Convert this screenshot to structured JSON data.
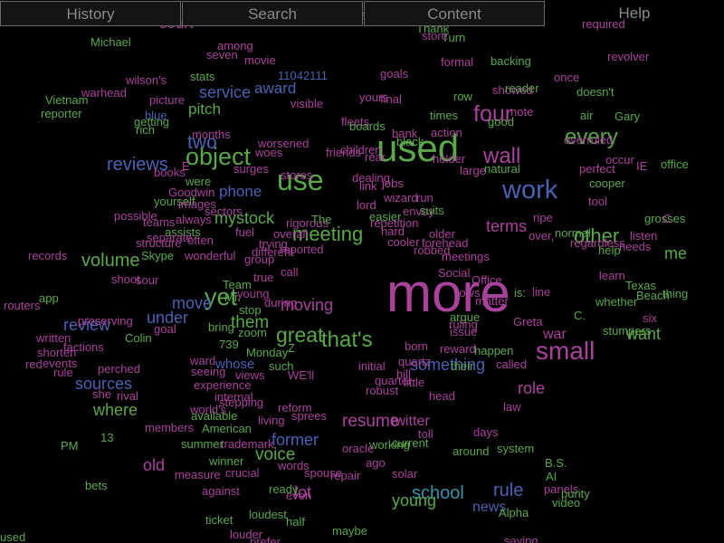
{
  "menu": {
    "history": "History",
    "search": "Search",
    "content": "Content",
    "help": "Help"
  },
  "colors": {
    "background": "#000000",
    "menu_text": "#8a8a8a",
    "menu_border": "#6a6a6a",
    "green": "#5aa84a",
    "magenta": "#a8429a",
    "blue": "#4a62b0",
    "teal": "#3a8fa8"
  },
  "word_cloud": {
    "featured_words": [
      {
        "text": "more",
        "color": "#a8429a"
      },
      {
        "text": "used",
        "color": "#5aa84a"
      },
      {
        "text": "use",
        "color": "#5aa84a"
      },
      {
        "text": "work",
        "color": "#4a62b0"
      },
      {
        "text": "small",
        "color": "#a8429a"
      },
      {
        "text": "yet",
        "color": "#5aa84a"
      },
      {
        "text": "object",
        "color": "#5aa84a"
      },
      {
        "text": "four",
        "color": "#a8429a"
      },
      {
        "text": "wall",
        "color": "#a8429a"
      },
      {
        "text": "every",
        "color": "#5aa84a"
      },
      {
        "text": "that's",
        "color": "#5aa84a"
      },
      {
        "text": "great",
        "color": "#5aa84a"
      },
      {
        "text": "meeting",
        "color": "#5aa84a"
      },
      {
        "text": "other",
        "color": "#5aa84a"
      },
      {
        "text": "two",
        "color": "#4a62b0"
      },
      {
        "text": "reviews",
        "color": "#4a62b0"
      },
      {
        "text": "school",
        "color": "#3a8fa8"
      },
      {
        "text": "volume",
        "color": "#5aa84a"
      },
      {
        "text": "resume",
        "color": "#a8429a"
      },
      {
        "text": "rule",
        "color": "#4a62b0"
      },
      {
        "text": "voice",
        "color": "#5aa84a"
      },
      {
        "text": "them",
        "color": "#5aa84a"
      },
      {
        "text": "service",
        "color": "#4a62b0"
      },
      {
        "text": "mystock",
        "color": "#5aa84a"
      },
      {
        "text": "something",
        "color": "#4a62b0"
      },
      {
        "text": "former",
        "color": "#4a62b0"
      },
      {
        "text": "role",
        "color": "#a8429a"
      },
      {
        "text": "terms",
        "color": "#a8429a"
      },
      {
        "text": "moving",
        "color": "#a8429a"
      },
      {
        "text": "review",
        "color": "#4a62b0"
      },
      {
        "text": "award",
        "color": "#4a62b0"
      },
      {
        "text": "phone",
        "color": "#4a62b0"
      },
      {
        "text": "pitch",
        "color": "#5aa84a"
      },
      {
        "text": "sources",
        "color": "#4a62b0"
      },
      {
        "text": "where",
        "color": "#5aa84a"
      },
      {
        "text": "under",
        "color": "#4a62b0"
      },
      {
        "text": "move",
        "color": "#4a62b0"
      },
      {
        "text": "old",
        "color": "#a8429a"
      },
      {
        "text": "young",
        "color": "#5aa84a"
      },
      {
        "text": "room",
        "color": "#a8429a"
      },
      {
        "text": "want",
        "color": "#5aa84a"
      },
      {
        "text": "me",
        "color": "#5aa84a"
      },
      {
        "text": "war",
        "color": "#a8429a"
      },
      {
        "text": "court",
        "color": "#a8429a"
      },
      {
        "text": "lot",
        "color": "#a8429a"
      },
      {
        "text": "twitter",
        "color": "#a8429a"
      },
      {
        "text": "news",
        "color": "#4a62b0"
      },
      {
        "text": "whose",
        "color": "#4a62b0"
      }
    ],
    "small_words": [
      {
        "text": "Michael",
        "color": "#5aa84a"
      },
      {
        "text": "reporter",
        "color": "#5aa84a"
      },
      {
        "text": "Vietnam",
        "color": "#5aa84a"
      },
      {
        "text": "warhead",
        "color": "#a8429a"
      },
      {
        "text": "wilson's",
        "color": "#a8429a"
      },
      {
        "text": "stats",
        "color": "#5aa84a"
      },
      {
        "text": "among",
        "color": "#a8429a"
      },
      {
        "text": "seven",
        "color": "#a8429a"
      },
      {
        "text": "movie",
        "color": "#a8429a"
      },
      {
        "text": "11042111",
        "color": "#4a62b0"
      },
      {
        "text": "visible",
        "color": "#a8429a"
      },
      {
        "text": "picture",
        "color": "#a8429a"
      },
      {
        "text": "blue",
        "color": "#4a62b0"
      },
      {
        "text": "getting",
        "color": "#5aa84a"
      },
      {
        "text": "rich",
        "color": "#5aa84a"
      },
      {
        "text": "months",
        "color": "#a8429a"
      },
      {
        "text": "worsened",
        "color": "#a8429a"
      },
      {
        "text": "woes",
        "color": "#a8429a"
      },
      {
        "text": "E",
        "color": "#a8429a"
      },
      {
        "text": "books",
        "color": "#a8429a"
      },
      {
        "text": "were",
        "color": "#5aa84a"
      },
      {
        "text": "surges",
        "color": "#a8429a"
      },
      {
        "text": "stores",
        "color": "#a8429a"
      },
      {
        "text": "Goodwin",
        "color": "#a8429a"
      },
      {
        "text": "yourself",
        "color": "#5aa84a"
      },
      {
        "text": "images",
        "color": "#a8429a"
      },
      {
        "text": "sectors",
        "color": "#a8429a"
      },
      {
        "text": "always",
        "color": "#a8429a"
      },
      {
        "text": "possible",
        "color": "#a8429a"
      },
      {
        "text": "teams",
        "color": "#a8429a"
      },
      {
        "text": "assists",
        "color": "#5aa84a"
      },
      {
        "text": "separate",
        "color": "#a8429a"
      },
      {
        "text": "structure",
        "color": "#a8429a"
      },
      {
        "text": "often",
        "color": "#a8429a"
      },
      {
        "text": "fuel",
        "color": "#a8429a"
      },
      {
        "text": "trying",
        "color": "#a8429a"
      },
      {
        "text": "different",
        "color": "#a8429a"
      },
      {
        "text": "rigorous",
        "color": "#a8429a"
      },
      {
        "text": "The",
        "color": "#5aa84a"
      },
      {
        "text": "overall",
        "color": "#a8429a"
      },
      {
        "text": "records",
        "color": "#a8429a"
      },
      {
        "text": "Skype",
        "color": "#5aa84a"
      },
      {
        "text": "wonderful",
        "color": "#a8429a"
      },
      {
        "text": "group",
        "color": "#a8429a"
      },
      {
        "text": "reported",
        "color": "#a8429a"
      },
      {
        "text": "sour",
        "color": "#a8429a"
      },
      {
        "text": "shoot",
        "color": "#a8429a"
      },
      {
        "text": "true",
        "color": "#a8429a"
      },
      {
        "text": "call",
        "color": "#a8429a"
      },
      {
        "text": "Team",
        "color": "#5aa84a"
      },
      {
        "text": "Mr.",
        "color": "#5aa84a"
      },
      {
        "text": "stop",
        "color": "#5aa84a"
      },
      {
        "text": "during",
        "color": "#a8429a"
      },
      {
        "text": "young",
        "color": "#a8429a"
      },
      {
        "text": "app",
        "color": "#5aa84a"
      },
      {
        "text": "routers",
        "color": "#a8429a"
      },
      {
        "text": "preserving",
        "color": "#a8429a"
      },
      {
        "text": "goal",
        "color": "#a8429a"
      },
      {
        "text": "bring",
        "color": "#5aa84a"
      },
      {
        "text": "zoom",
        "color": "#5aa84a"
      },
      {
        "text": "written",
        "color": "#a8429a"
      },
      {
        "text": "Colin",
        "color": "#5aa84a"
      },
      {
        "text": "factions",
        "color": "#a8429a"
      },
      {
        "text": "shorten",
        "color": "#a8429a"
      },
      {
        "text": "red",
        "color": "#a8429a"
      },
      {
        "text": "events",
        "color": "#a8429a"
      },
      {
        "text": "rule",
        "color": "#a8429a"
      },
      {
        "text": "perched",
        "color": "#a8429a"
      },
      {
        "text": "739",
        "color": "#5aa84a"
      },
      {
        "text": "Monday",
        "color": "#5aa84a"
      },
      {
        "text": "Z",
        "color": "#5aa84a"
      },
      {
        "text": "ward",
        "color": "#a8429a"
      },
      {
        "text": "seeing",
        "color": "#a8429a"
      },
      {
        "text": "views",
        "color": "#a8429a"
      },
      {
        "text": "such",
        "color": "#5aa84a"
      },
      {
        "text": "WE'll",
        "color": "#a8429a"
      },
      {
        "text": "rival",
        "color": "#a8429a"
      },
      {
        "text": "she",
        "color": "#a8429a"
      },
      {
        "text": "experience",
        "color": "#a8429a"
      },
      {
        "text": "internal",
        "color": "#a8429a"
      },
      {
        "text": "stepping",
        "color": "#a8429a"
      },
      {
        "text": "world's",
        "color": "#a8429a"
      },
      {
        "text": "available",
        "color": "#5aa84a"
      },
      {
        "text": "reform",
        "color": "#a8429a"
      },
      {
        "text": "sprees",
        "color": "#a8429a"
      },
      {
        "text": "living",
        "color": "#a8429a"
      },
      {
        "text": "members",
        "color": "#a8429a"
      },
      {
        "text": "American",
        "color": "#5aa84a"
      },
      {
        "text": "trademark",
        "color": "#a8429a"
      },
      {
        "text": "summer",
        "color": "#5aa84a"
      },
      {
        "text": "13",
        "color": "#5aa84a"
      },
      {
        "text": "PM",
        "color": "#5aa84a"
      },
      {
        "text": "winner",
        "color": "#5aa84a"
      },
      {
        "text": "words",
        "color": "#a8429a"
      },
      {
        "text": "crucial",
        "color": "#a8429a"
      },
      {
        "text": "measure",
        "color": "#a8429a"
      },
      {
        "text": "spouse",
        "color": "#a8429a"
      },
      {
        "text": "bets",
        "color": "#5aa84a"
      },
      {
        "text": "against",
        "color": "#a8429a"
      },
      {
        "text": "ready",
        "color": "#5aa84a"
      },
      {
        "text": "even",
        "color": "#a8429a"
      },
      {
        "text": "ticket",
        "color": "#5aa84a"
      },
      {
        "text": "loudest",
        "color": "#5aa84a"
      },
      {
        "text": "half",
        "color": "#5aa84a"
      },
      {
        "text": "louder",
        "color": "#a8429a"
      },
      {
        "text": "prefer",
        "color": "#a8429a"
      },
      {
        "text": "maybe",
        "color": "#5aa84a"
      },
      {
        "text": "used",
        "color": "#5aa84a"
      },
      {
        "text": "seconds",
        "color": "#5aa84a"
      },
      {
        "text": "never",
        "color": "#a8429a"
      },
      {
        "text": "Thank",
        "color": "#5aa84a"
      },
      {
        "text": "Turn",
        "color": "#5aa84a"
      },
      {
        "text": "store",
        "color": "#a8429a"
      },
      {
        "text": "formal",
        "color": "#a8429a"
      },
      {
        "text": "goals",
        "color": "#a8429a"
      },
      {
        "text": "yours",
        "color": "#a8429a"
      },
      {
        "text": "final",
        "color": "#a8429a"
      },
      {
        "text": "row",
        "color": "#5aa84a"
      },
      {
        "text": "showed",
        "color": "#a8429a"
      },
      {
        "text": "note",
        "color": "#a8429a"
      },
      {
        "text": "good",
        "color": "#5aa84a"
      },
      {
        "text": "times",
        "color": "#5aa84a"
      },
      {
        "text": "action",
        "color": "#a8429a"
      },
      {
        "text": "fleets",
        "color": "#a8429a"
      },
      {
        "text": "boards",
        "color": "#5aa84a"
      },
      {
        "text": "bank",
        "color": "#a8429a"
      },
      {
        "text": "black",
        "color": "#5aa84a"
      },
      {
        "text": "friends",
        "color": "#a8429a"
      },
      {
        "text": "children",
        "color": "#a8429a"
      },
      {
        "text": "rear",
        "color": "#a8429a"
      },
      {
        "text": "holder",
        "color": "#a8429a"
      },
      {
        "text": "large",
        "color": "#a8429a"
      },
      {
        "text": "natural",
        "color": "#5aa84a"
      },
      {
        "text": "dealing",
        "color": "#a8429a"
      },
      {
        "text": "link",
        "color": "#a8429a"
      },
      {
        "text": "jobs",
        "color": "#a8429a"
      },
      {
        "text": "run",
        "color": "#a8429a"
      },
      {
        "text": "wizard",
        "color": "#a8429a"
      },
      {
        "text": "envoy",
        "color": "#a8429a"
      },
      {
        "text": "suits",
        "color": "#5aa84a"
      },
      {
        "text": "lord",
        "color": "#a8429a"
      },
      {
        "text": "easier",
        "color": "#5aa84a"
      },
      {
        "text": "repetition",
        "color": "#a8429a"
      },
      {
        "text": "hard",
        "color": "#a8429a"
      },
      {
        "text": "older",
        "color": "#a8429a"
      },
      {
        "text": "forehead",
        "color": "#a8429a"
      },
      {
        "text": "cooler",
        "color": "#a8429a"
      },
      {
        "text": "robbed",
        "color": "#a8429a"
      },
      {
        "text": "meetings",
        "color": "#a8429a"
      },
      {
        "text": "Social",
        "color": "#a8429a"
      },
      {
        "text": "Office",
        "color": "#a8429a"
      },
      {
        "text": "rows",
        "color": "#a8429a"
      },
      {
        "text": "matter",
        "color": "#a8429a"
      },
      {
        "text": "argue",
        "color": "#5aa84a"
      },
      {
        "text": "ruling",
        "color": "#a8429a"
      },
      {
        "text": "issue",
        "color": "#a8429a"
      },
      {
        "text": "reward",
        "color": "#a8429a"
      },
      {
        "text": "happen",
        "color": "#5aa84a"
      },
      {
        "text": "their",
        "color": "#5aa84a"
      },
      {
        "text": "called",
        "color": "#a8429a"
      },
      {
        "text": "born",
        "color": "#a8429a"
      },
      {
        "text": "quartz",
        "color": "#a8429a"
      },
      {
        "text": "initial",
        "color": "#a8429a"
      },
      {
        "text": "hill",
        "color": "#a8429a"
      },
      {
        "text": "little",
        "color": "#a8429a"
      },
      {
        "text": "quarter",
        "color": "#a8429a"
      },
      {
        "text": "robust",
        "color": "#a8429a"
      },
      {
        "text": "head",
        "color": "#a8429a"
      },
      {
        "text": "law",
        "color": "#a8429a"
      },
      {
        "text": "days",
        "color": "#a8429a"
      },
      {
        "text": "system",
        "color": "#5aa84a"
      },
      {
        "text": "around",
        "color": "#5aa84a"
      },
      {
        "text": "toll",
        "color": "#a8429a"
      },
      {
        "text": "current",
        "color": "#5aa84a"
      },
      {
        "text": "working",
        "color": "#5aa84a"
      },
      {
        "text": "ago",
        "color": "#a8429a"
      },
      {
        "text": "oracle",
        "color": "#a8429a"
      },
      {
        "text": "repair",
        "color": "#a8429a"
      },
      {
        "text": "solar",
        "color": "#a8429a"
      },
      {
        "text": "B.S.",
        "color": "#5aa84a"
      },
      {
        "text": "AI",
        "color": "#5aa84a"
      },
      {
        "text": "panels",
        "color": "#a8429a"
      },
      {
        "text": "purity",
        "color": "#5aa84a"
      },
      {
        "text": "video",
        "color": "#5aa84a"
      },
      {
        "text": "Alpha",
        "color": "#5aa84a"
      },
      {
        "text": "saying",
        "color": "#a8429a"
      },
      {
        "text": "backing",
        "color": "#5aa84a"
      },
      {
        "text": "reader",
        "color": "#5aa84a"
      },
      {
        "text": "once",
        "color": "#a8429a"
      },
      {
        "text": "revolver",
        "color": "#a8429a"
      },
      {
        "text": "required",
        "color": "#a8429a"
      },
      {
        "text": "doesn't",
        "color": "#5aa84a"
      },
      {
        "text": "air",
        "color": "#5aa84a"
      },
      {
        "text": "Gary",
        "color": "#5aa84a"
      },
      {
        "text": "overruled",
        "color": "#a8429a"
      },
      {
        "text": "occur",
        "color": "#a8429a"
      },
      {
        "text": "perfect",
        "color": "#a8429a"
      },
      {
        "text": "IE",
        "color": "#a8429a"
      },
      {
        "text": "office",
        "color": "#5aa84a"
      },
      {
        "text": "cooper",
        "color": "#5aa84a"
      },
      {
        "text": "tool",
        "color": "#a8429a"
      },
      {
        "text": "ripe",
        "color": "#a8429a"
      },
      {
        "text": "grosses",
        "color": "#5aa84a"
      },
      {
        "text": "C",
        "color": "#a8429a"
      },
      {
        "text": "normal",
        "color": "#5aa84a"
      },
      {
        "text": "listen",
        "color": "#a8429a"
      },
      {
        "text": "regardless",
        "color": "#a8429a"
      },
      {
        "text": "needs",
        "color": "#a8429a"
      },
      {
        "text": "help",
        "color": "#5aa84a"
      },
      {
        "text": "over,",
        "color": "#a8429a"
      },
      {
        "text": "learn",
        "color": "#a8429a"
      },
      {
        "text": "Texas",
        "color": "#5aa84a"
      },
      {
        "text": "Beach",
        "color": "#5aa84a"
      },
      {
        "text": "thing",
        "color": "#5aa84a"
      },
      {
        "text": "whether",
        "color": "#5aa84a"
      },
      {
        "text": "is:",
        "color": "#5aa84a"
      },
      {
        "text": "line",
        "color": "#a8429a"
      },
      {
        "text": "C.",
        "color": "#5aa84a"
      },
      {
        "text": "six",
        "color": "#a8429a"
      },
      {
        "text": "Greta",
        "color": "#a8429a"
      },
      {
        "text": "stumpers",
        "color": "#5aa84a"
      }
    ]
  }
}
